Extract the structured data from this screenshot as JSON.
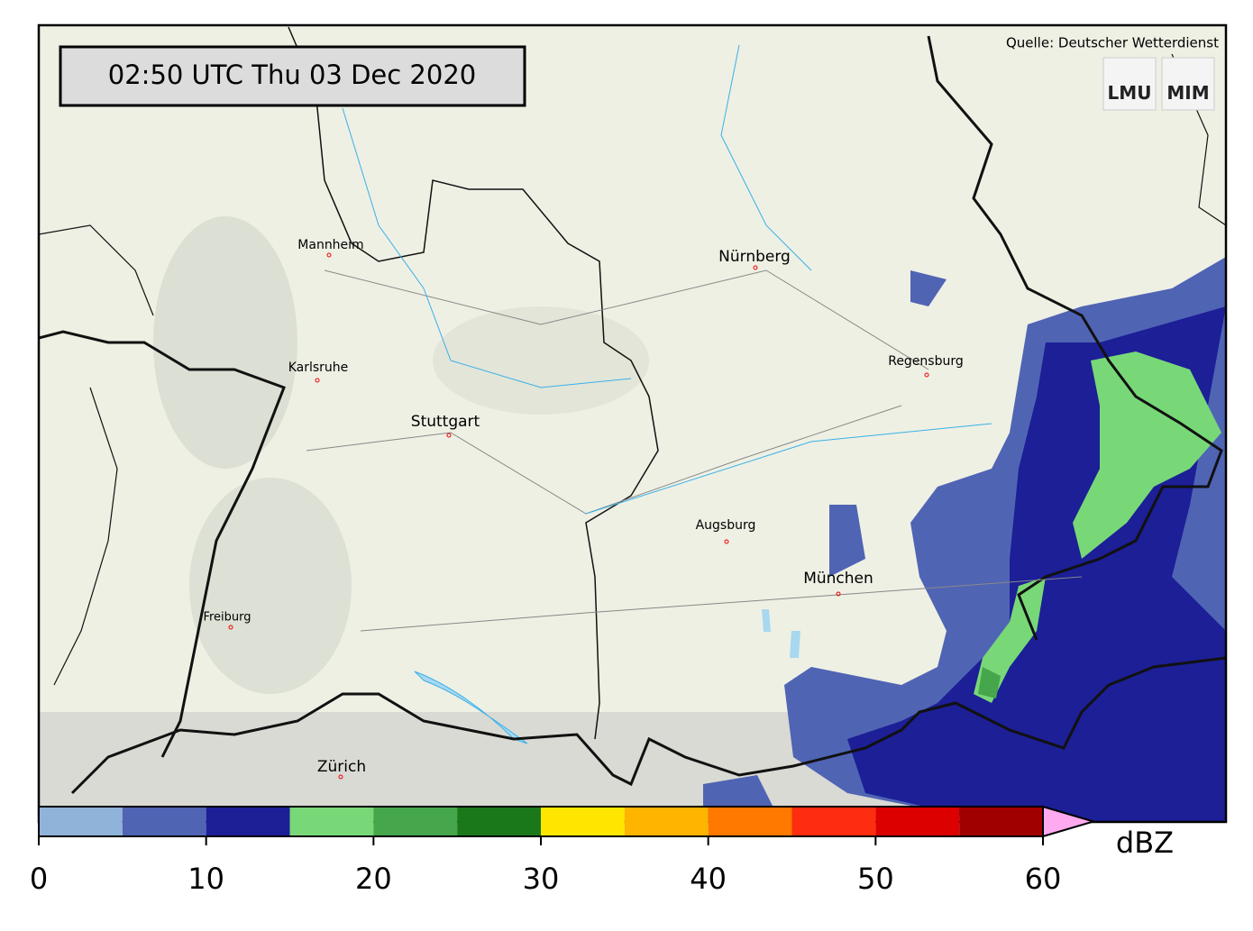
{
  "header": {
    "timestamp": "02:50 UTC  Thu 03 Dec 2020",
    "source": "Quelle: Deutscher Wetterdienst",
    "logos": [
      "LMU",
      "MIM"
    ]
  },
  "cities": [
    "Mannheim",
    "Nürnberg",
    "Karlsruhe",
    "Stuttgart",
    "Regensburg",
    "Augsburg",
    "München",
    "Freiburg",
    "Zürich"
  ],
  "colorbar": {
    "bins": [
      0,
      5,
      10,
      15,
      20,
      25,
      30,
      35,
      40,
      45,
      50,
      55,
      60
    ],
    "colors": [
      "#8fb3d9",
      "#5064b4",
      "#1c1f96",
      "#78d878",
      "#46a64b",
      "#1a781a",
      "#ffe600",
      "#ffb400",
      "#ff7800",
      "#ff2d10",
      "#dc0000",
      "#a00000"
    ],
    "extend_color": "#ffaaf0",
    "ticks": [
      0,
      10,
      20,
      30,
      40,
      50,
      60
    ],
    "label": "dBZ"
  }
}
